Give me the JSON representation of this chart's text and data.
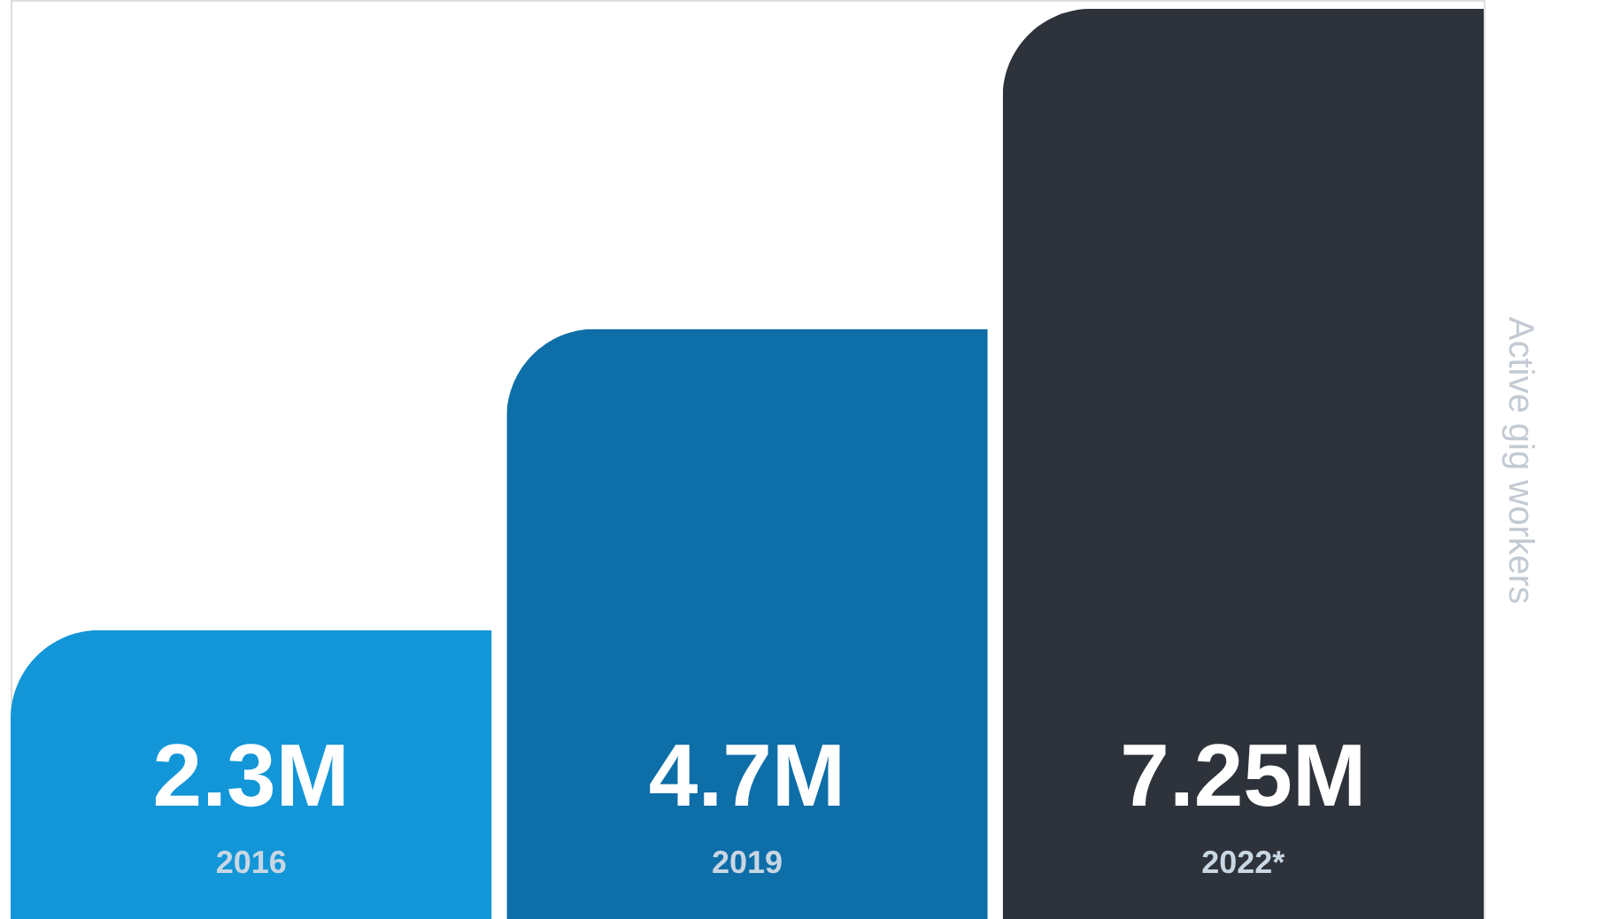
{
  "chart_data": {
    "type": "bar",
    "categories": [
      "2016",
      "2019",
      "2022*"
    ],
    "values": [
      2.3,
      4.7,
      7.25
    ],
    "colors": [
      "#1296d8",
      "#0d6ea8",
      "#2e333b"
    ],
    "value_labels": [
      "2.3M",
      "4.7M",
      "7.25M"
    ],
    "ylabel": "Active gig workers",
    "ylim": [
      0,
      7.32
    ],
    "grid": false
  }
}
